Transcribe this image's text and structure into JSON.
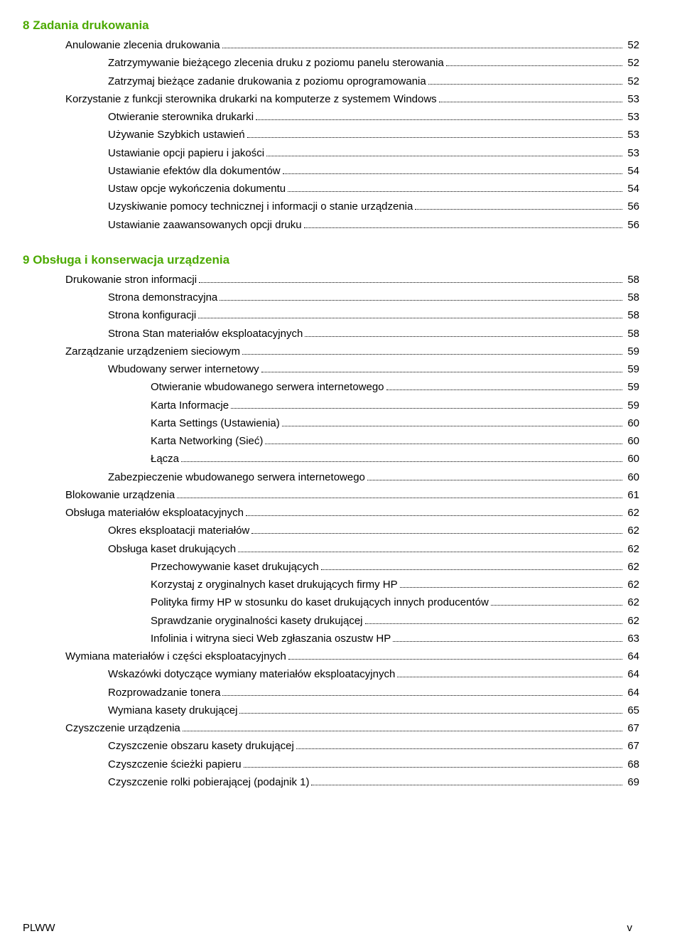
{
  "sections": [
    {
      "number": "8",
      "title": "Zadania drukowania",
      "items": [
        {
          "indent": 1,
          "text": "Anulowanie zlecenia drukowania",
          "page": "52"
        },
        {
          "indent": 2,
          "text": "Zatrzymywanie bieżącego zlecenia druku z poziomu panelu sterowania",
          "page": "52"
        },
        {
          "indent": 2,
          "text": "Zatrzymaj bieżące zadanie drukowania z poziomu oprogramowania",
          "page": "52"
        },
        {
          "indent": 1,
          "text": "Korzystanie z funkcji sterownika drukarki na komputerze z systemem Windows",
          "page": "53"
        },
        {
          "indent": 2,
          "text": "Otwieranie sterownika drukarki",
          "page": "53"
        },
        {
          "indent": 2,
          "text": "Używanie Szybkich ustawień",
          "page": "53"
        },
        {
          "indent": 2,
          "text": "Ustawianie opcji papieru i jakości",
          "page": "53"
        },
        {
          "indent": 2,
          "text": "Ustawianie efektów dla dokumentów",
          "page": "54"
        },
        {
          "indent": 2,
          "text": "Ustaw opcje wykończenia dokumentu",
          "page": "54"
        },
        {
          "indent": 2,
          "text": "Uzyskiwanie pomocy technicznej i informacji o stanie urządzenia",
          "page": "56"
        },
        {
          "indent": 2,
          "text": "Ustawianie zaawansowanych opcji druku",
          "page": "56"
        }
      ]
    },
    {
      "number": "9",
      "title": "Obsługa i konserwacja urządzenia",
      "items": [
        {
          "indent": 1,
          "text": "Drukowanie stron informacji",
          "page": "58"
        },
        {
          "indent": 2,
          "text": "Strona demonstracyjna",
          "page": "58"
        },
        {
          "indent": 2,
          "text": "Strona konfiguracji",
          "page": "58"
        },
        {
          "indent": 2,
          "text": "Strona Stan materiałów eksploatacyjnych",
          "page": "58"
        },
        {
          "indent": 1,
          "text": "Zarządzanie urządzeniem sieciowym",
          "page": "59"
        },
        {
          "indent": 2,
          "text": "Wbudowany serwer internetowy",
          "page": "59"
        },
        {
          "indent": 3,
          "text": "Otwieranie wbudowanego serwera internetowego",
          "page": "59"
        },
        {
          "indent": 3,
          "text": "Karta Informacje",
          "page": "59"
        },
        {
          "indent": 3,
          "text": "Karta Settings (Ustawienia)",
          "page": "60"
        },
        {
          "indent": 3,
          "text": "Karta Networking (Sieć)",
          "page": "60"
        },
        {
          "indent": 3,
          "text": "Łącza",
          "page": "60"
        },
        {
          "indent": 2,
          "text": "Zabezpieczenie wbudowanego serwera internetowego",
          "page": "60"
        },
        {
          "indent": 1,
          "text": "Blokowanie urządzenia",
          "page": "61"
        },
        {
          "indent": 1,
          "text": "Obsługa materiałów eksploatacyjnych",
          "page": "62"
        },
        {
          "indent": 2,
          "text": "Okres eksploatacji materiałów",
          "page": "62"
        },
        {
          "indent": 2,
          "text": "Obsługa kaset drukujących",
          "page": "62"
        },
        {
          "indent": 3,
          "text": "Przechowywanie kaset drukujących",
          "page": "62"
        },
        {
          "indent": 3,
          "text": "Korzystaj z oryginalnych kaset drukujących firmy HP",
          "page": "62"
        },
        {
          "indent": 3,
          "text": "Polityka firmy HP w stosunku do kaset drukujących innych producentów",
          "page": "62"
        },
        {
          "indent": 3,
          "text": "Sprawdzanie oryginalności kasety drukującej",
          "page": "62"
        },
        {
          "indent": 3,
          "text": "Infolinia i witryna sieci Web zgłaszania oszustw HP",
          "page": "63"
        },
        {
          "indent": 1,
          "text": "Wymiana materiałów i części eksploatacyjnych",
          "page": "64"
        },
        {
          "indent": 2,
          "text": "Wskazówki dotyczące wymiany materiałów eksploatacyjnych",
          "page": "64"
        },
        {
          "indent": 2,
          "text": "Rozprowadzanie tonera",
          "page": "64"
        },
        {
          "indent": 2,
          "text": "Wymiana kasety drukującej",
          "page": "65"
        },
        {
          "indent": 1,
          "text": "Czyszczenie urządzenia",
          "page": "67"
        },
        {
          "indent": 2,
          "text": "Czyszczenie obszaru kasety drukującej",
          "page": "67"
        },
        {
          "indent": 2,
          "text": "Czyszczenie ścieżki papieru",
          "page": "68"
        },
        {
          "indent": 2,
          "text": "Czyszczenie rolki pobierającej (podajnik 1)",
          "page": "69"
        }
      ]
    }
  ],
  "footer": {
    "left": "PLWW",
    "right": "v"
  },
  "colors": {
    "heading": "#4caa00",
    "text": "#000000",
    "background": "#ffffff"
  }
}
